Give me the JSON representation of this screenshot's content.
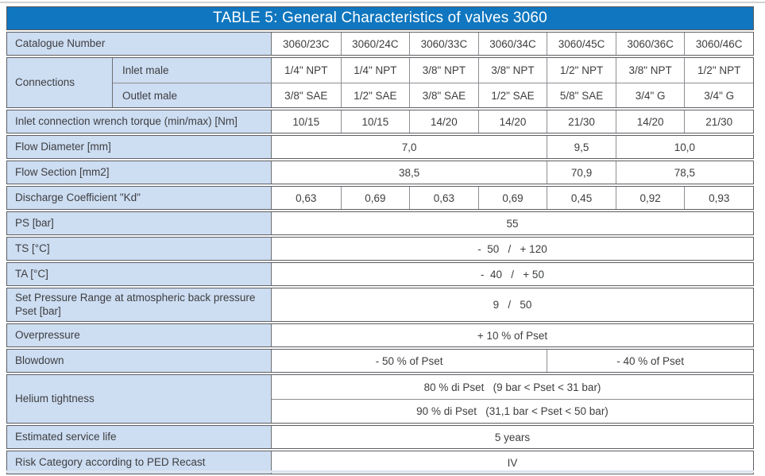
{
  "header": {
    "title": "TABLE 5: General Characteristics of valves 3060"
  },
  "colors": {
    "header_bg": "#0f76bf",
    "header_text": "#ffffff",
    "label_bg": "#cdddf2",
    "border": "#6e6f73",
    "text": "#3d3e40"
  },
  "catalogue": {
    "label": "Catalogue Number",
    "values": [
      "3060/23C",
      "3060/24C",
      "3060/33C",
      "3060/34C",
      "3060/45C",
      "3060/36C",
      "3060/46C"
    ]
  },
  "connections": {
    "label": "Connections",
    "inlet": {
      "label": "Inlet male",
      "values": [
        "1/4\" NPT",
        "1/4\" NPT",
        "3/8\" NPT",
        "3/8\" NPT",
        "1/2\" NPT",
        "3/8\" NPT",
        "1/2\" NPT"
      ]
    },
    "outlet": {
      "label": "Outlet male",
      "values": [
        "3/8\" SAE",
        "1/2\" SAE",
        "3/8\" SAE",
        "1/2\" SAE",
        "5/8\" SAE",
        "3/4\" G",
        "3/4\" G"
      ]
    }
  },
  "torque": {
    "label": "Inlet connection wrench torque (min/max) [Nm]",
    "values": [
      "10/15",
      "10/15",
      "14/20",
      "14/20",
      "21/30",
      "14/20",
      "21/30"
    ]
  },
  "flow_diameter": {
    "label": "Flow Diameter [mm]",
    "values": [
      "7,0",
      "9,5",
      "10,0"
    ]
  },
  "flow_section": {
    "label": "Flow Section [mm2]",
    "values": [
      "38,5",
      "70,9",
      "78,5"
    ]
  },
  "kd": {
    "label": "Discharge Coefficient \"Kd\"",
    "values": [
      "0,63",
      "0,69",
      "0,63",
      "0,69",
      "0,45",
      "0,92",
      "0,93"
    ]
  },
  "ps": {
    "label": "PS [bar]",
    "value": "55"
  },
  "ts": {
    "label": "TS [°C]",
    "value": "-  50   /   + 120"
  },
  "ta": {
    "label": "TA [°C]",
    "value": "-  40   /   + 50"
  },
  "pset_range": {
    "label": "Set Pressure Range at atmospheric back pressure Pset [bar]",
    "value": "9   /   50"
  },
  "overpressure": {
    "label": "Overpressure",
    "value": "+ 10 % of Pset"
  },
  "blowdown": {
    "label": "Blowdown",
    "values": [
      "- 50 % of Pset",
      "- 40 % of Pset"
    ]
  },
  "helium": {
    "label": "Helium tightness",
    "values": [
      "80 % di Pset   (9 bar < Pset < 31 bar)",
      "90 % di Pset   (31,1 bar < Pset < 50 bar)"
    ]
  },
  "service_life": {
    "label": "Estimated service life",
    "value": "5 years"
  },
  "risk": {
    "label": "Risk Category according to PED Recast",
    "value": "IV"
  }
}
